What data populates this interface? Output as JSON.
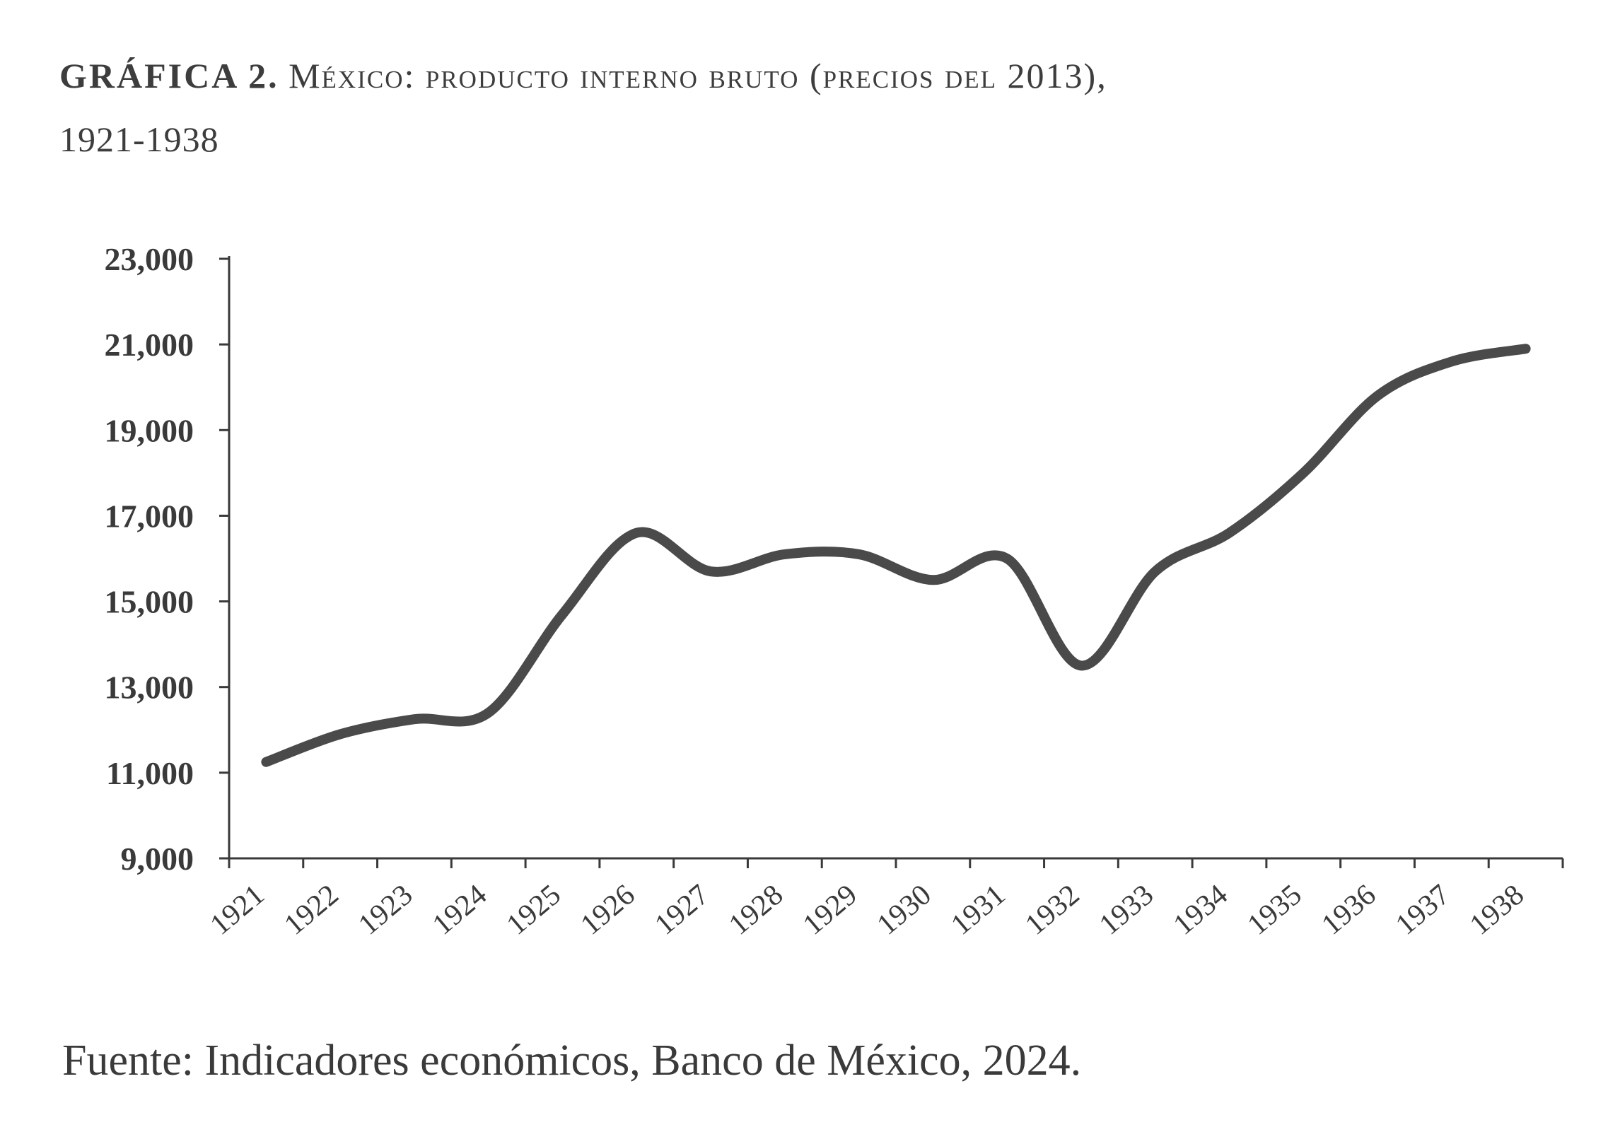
{
  "title": {
    "label": "GRÁFICA 2.",
    "main": "México: producto interno bruto (precios del 2013),",
    "years": "1921-1938"
  },
  "source": "Fuente: Indicadores económicos, Banco de México, 2024.",
  "colors": {
    "line": "#4a4a4a",
    "axis": "#3a3a3a",
    "text": "#3a3a3a"
  },
  "chart_data": {
    "type": "line",
    "title": "México: producto interno bruto (precios del 2013), 1921-1938",
    "xlabel": "",
    "ylabel": "",
    "ylim": [
      9000,
      23000
    ],
    "yticks": [
      9000,
      11000,
      13000,
      15000,
      17000,
      19000,
      21000,
      23000
    ],
    "ytick_labels": [
      "9,000",
      "11,000",
      "13,000",
      "15,000",
      "17,000",
      "19,000",
      "21,000",
      "23,000"
    ],
    "categories": [
      "1921",
      "1922",
      "1923",
      "1924",
      "1925",
      "1926",
      "1927",
      "1928",
      "1929",
      "1930",
      "1931",
      "1932",
      "1933",
      "1934",
      "1935",
      "1936",
      "1937",
      "1938"
    ],
    "values": [
      11250,
      11900,
      12250,
      12400,
      14700,
      16600,
      15700,
      16100,
      16100,
      15500,
      16000,
      13500,
      15700,
      16600,
      18000,
      19800,
      20600,
      20900
    ],
    "grid": false,
    "legend": "none"
  }
}
